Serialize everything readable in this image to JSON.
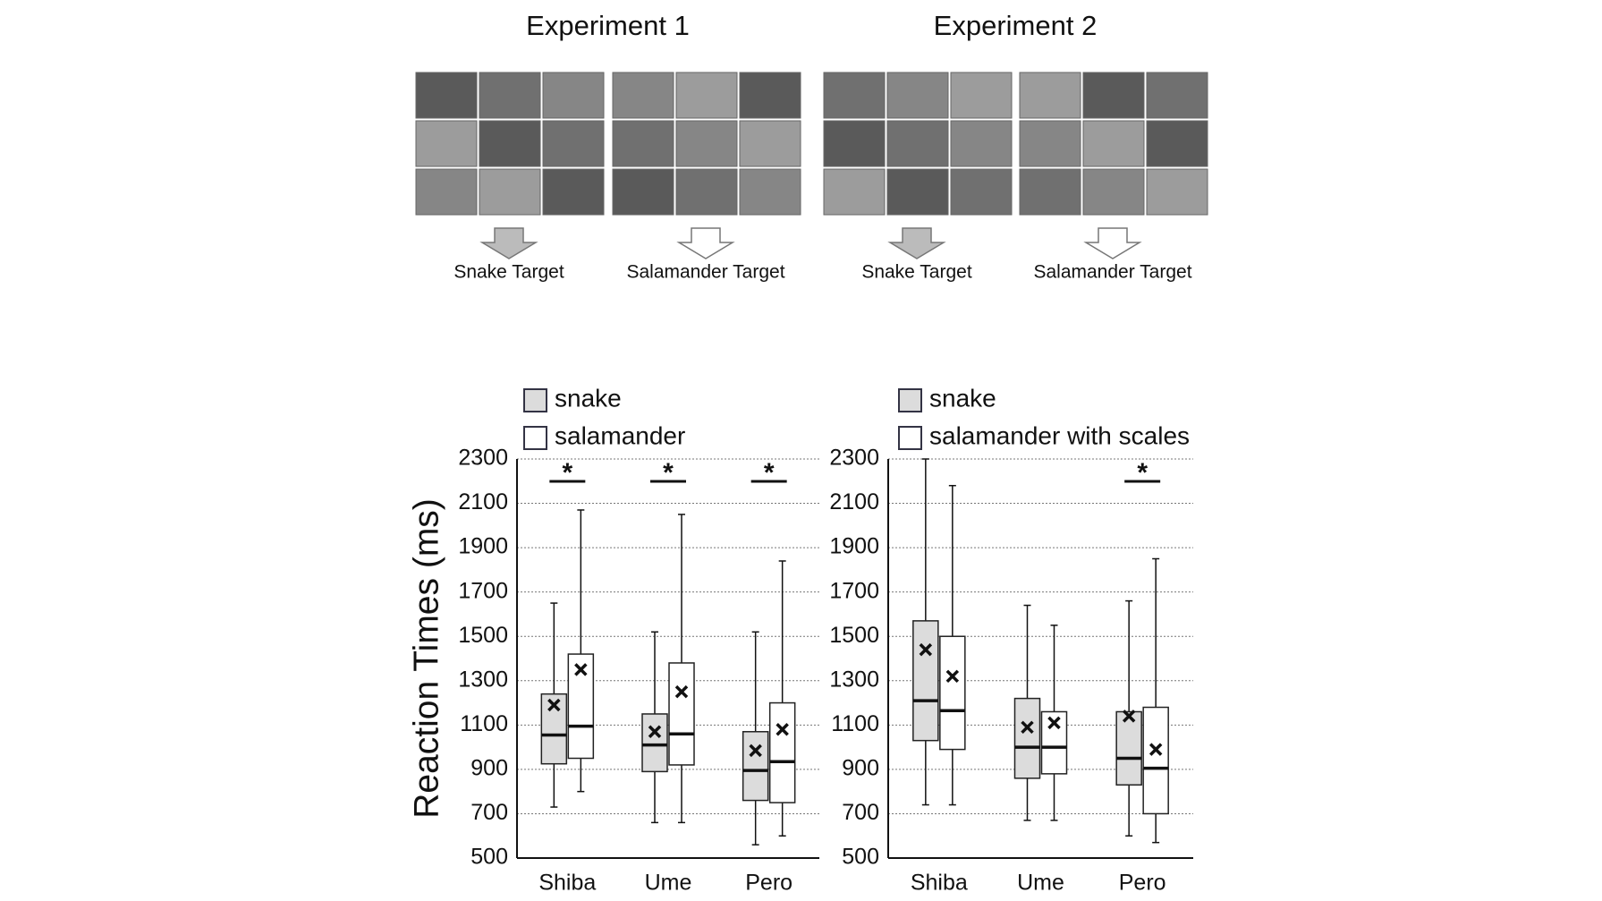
{
  "figure": {
    "experiments": [
      {
        "title": "Experiment 1",
        "targets": [
          "Snake Target",
          "Salamander Target"
        ]
      },
      {
        "title": "Experiment 2",
        "targets": [
          "Snake Target",
          "Salamander Target"
        ]
      }
    ]
  },
  "chart_data": [
    {
      "type": "box",
      "ylabel": "Reaction Times (ms)",
      "categories": [
        "Shiba",
        "Ume",
        "Pero"
      ],
      "ylim": [
        500,
        2300
      ],
      "yticks": [
        500,
        700,
        900,
        1100,
        1300,
        1500,
        1700,
        1900,
        2100,
        2300
      ],
      "grid": true,
      "significance": [
        "*",
        "*",
        "*"
      ],
      "series": [
        {
          "name": "snake",
          "color": "#dcdcdc",
          "boxes": [
            {
              "min": 730,
              "q1": 925,
              "median": 1055,
              "q3": 1240,
              "max": 1650,
              "mean": 1190
            },
            {
              "min": 660,
              "q1": 890,
              "median": 1010,
              "q3": 1150,
              "max": 1520,
              "mean": 1070
            },
            {
              "min": 560,
              "q1": 760,
              "median": 895,
              "q3": 1070,
              "max": 1520,
              "mean": 985
            }
          ]
        },
        {
          "name": "salamander",
          "color": "#ffffff",
          "boxes": [
            {
              "min": 800,
              "q1": 950,
              "median": 1095,
              "q3": 1420,
              "max": 2070,
              "mean": 1350
            },
            {
              "min": 660,
              "q1": 920,
              "median": 1060,
              "q3": 1380,
              "max": 2050,
              "mean": 1250
            },
            {
              "min": 600,
              "q1": 750,
              "median": 935,
              "q3": 1200,
              "max": 1840,
              "mean": 1080
            }
          ]
        }
      ]
    },
    {
      "type": "box",
      "categories": [
        "Shiba",
        "Ume",
        "Pero"
      ],
      "ylim": [
        500,
        2300
      ],
      "yticks": [
        500,
        700,
        900,
        1100,
        1300,
        1500,
        1700,
        1900,
        2100,
        2300
      ],
      "grid": true,
      "significance": [
        null,
        null,
        "*"
      ],
      "series": [
        {
          "name": "snake",
          "color": "#dcdcdc",
          "boxes": [
            {
              "min": 740,
              "q1": 1030,
              "median": 1210,
              "q3": 1570,
              "max": 2300,
              "mean": 1440
            },
            {
              "min": 670,
              "q1": 860,
              "median": 1000,
              "q3": 1220,
              "max": 1640,
              "mean": 1090
            },
            {
              "min": 600,
              "q1": 830,
              "median": 950,
              "q3": 1160,
              "max": 1660,
              "mean": 1140
            }
          ]
        },
        {
          "name": "salamander with scales",
          "color": "#ffffff",
          "boxes": [
            {
              "min": 740,
              "q1": 990,
              "median": 1165,
              "q3": 1500,
              "max": 2180,
              "mean": 1320
            },
            {
              "min": 670,
              "q1": 880,
              "median": 1000,
              "q3": 1160,
              "max": 1550,
              "mean": 1110
            },
            {
              "min": 570,
              "q1": 700,
              "median": 905,
              "q3": 1180,
              "max": 1850,
              "mean": 990
            }
          ]
        }
      ]
    }
  ]
}
